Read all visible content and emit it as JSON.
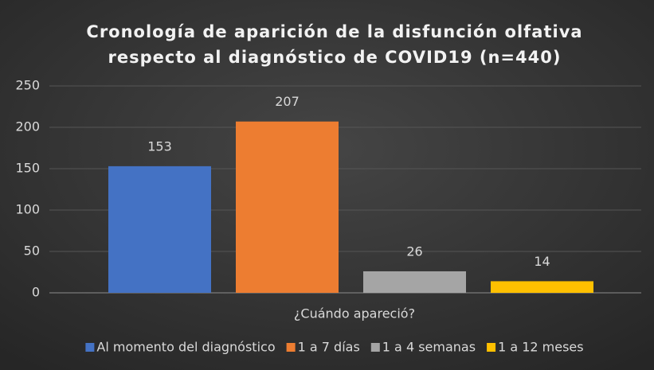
{
  "chart_data": {
    "type": "bar",
    "title": [
      "Cronología de aparición de la disfunción olfativa",
      "respecto al diagnóstico de COVID19 (n=440)"
    ],
    "x_label": "¿Cuándo apareció?",
    "categories": [
      null
    ],
    "series": [
      {
        "name": "Al momento del diagnóstico",
        "color": "#4472c4",
        "values": [
          153
        ]
      },
      {
        "name": "1 a 7 días",
        "color": "#ed7d31",
        "values": [
          207
        ]
      },
      {
        "name": "1 a 4 semanas",
        "color": "#a5a5a5",
        "values": [
          26
        ]
      },
      {
        "name": "1 a 12 meses",
        "color": "#ffc000",
        "values": [
          14
        ]
      }
    ],
    "ylim": [
      0,
      250
    ],
    "yticks": [
      0,
      50,
      100,
      150,
      200,
      250
    ],
    "grid": true,
    "legend": "bottom"
  }
}
